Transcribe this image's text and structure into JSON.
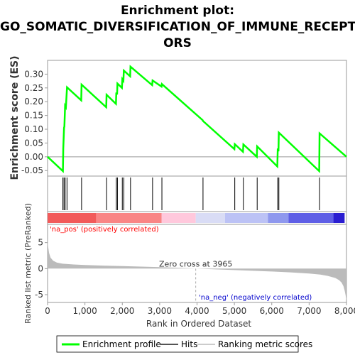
{
  "title_lines": [
    "Enrichment plot:",
    "GO_SOMATIC_DIVERSIFICATION_OF_IMMUNE_RECEPT",
    "ORS"
  ],
  "colors": {
    "es_line": "#00ff00",
    "hit_line": "#000000",
    "metric_fill": "#bbbbbb",
    "pos_label": "#ff0000",
    "neg_label": "#0000cc",
    "zero_line": "#aaaaaa",
    "frame": "#999999",
    "axis_text": "#333333"
  },
  "chart_data": [
    {
      "type": "line",
      "name": "enrichment-profile",
      "ylabel": "Enrichment score (ES)",
      "xlim": [
        0,
        8000
      ],
      "ylim": [
        -0.07,
        0.35
      ],
      "yticks": [
        -0.05,
        0.0,
        0.05,
        0.1,
        0.15,
        0.2,
        0.25,
        0.3
      ],
      "ytick_labels": [
        "-0.05",
        "0.00",
        "0.05",
        "0.10",
        "0.15",
        "0.20",
        "0.25",
        "0.30"
      ],
      "series": [
        {
          "name": "Enrichment profile",
          "x": [
            0,
            410,
            420,
            440,
            450,
            470,
            490,
            520,
            900,
            910,
            1570,
            1580,
            1830,
            1840,
            1860,
            1870,
            1990,
            2000,
            2030,
            2040,
            2210,
            2220,
            2800,
            2810,
            3050,
            3060,
            4150,
            4160,
            5000,
            5010,
            5230,
            5240,
            5600,
            5610,
            6150,
            6160,
            6180,
            6190,
            7270,
            7280,
            8000
          ],
          "y": [
            0.0,
            -0.052,
            0.03,
            0.105,
            0.11,
            0.185,
            0.18,
            0.252,
            0.205,
            0.262,
            0.18,
            0.225,
            0.192,
            0.233,
            0.226,
            0.266,
            0.25,
            0.282,
            0.276,
            0.313,
            0.292,
            0.327,
            0.26,
            0.277,
            0.255,
            0.264,
            0.133,
            0.13,
            0.028,
            0.046,
            0.018,
            0.045,
            0.0,
            0.038,
            -0.035,
            0.03,
            0.02,
            0.088,
            -0.052,
            0.085,
            0.0
          ]
        }
      ]
    },
    {
      "type": "scatter",
      "name": "hits",
      "series": [
        {
          "name": "Hits",
          "x": [
            410,
            440,
            470,
            520,
            910,
            1580,
            1840,
            1870,
            2000,
            2040,
            2220,
            2810,
            3060,
            4160,
            5010,
            5240,
            5610,
            6160,
            6190,
            7280
          ]
        }
      ]
    },
    {
      "type": "area",
      "name": "ranked-list-metric",
      "xlabel": "Rank in Ordered Dataset",
      "ylabel": "Ranked list metric (PreRanked)",
      "xlim": [
        0,
        8000
      ],
      "ylim": [
        -6.5,
        8.5
      ],
      "xticks": [
        0,
        1000,
        2000,
        3000,
        4000,
        5000,
        6000,
        7000,
        8000
      ],
      "xtick_labels": [
        "0",
        "1,000",
        "2,000",
        "3,000",
        "4,000",
        "5,000",
        "6,000",
        "7,000",
        "8,000"
      ],
      "yticks": [
        -5,
        0,
        5
      ],
      "ytick_labels": [
        "-5",
        "0",
        "5"
      ],
      "series": [
        {
          "name": "Ranking metric scores",
          "x": [
            0,
            10,
            40,
            80,
            150,
            250,
            400,
            700,
            1000,
            1500,
            2000,
            2500,
            3000,
            3500,
            3965,
            4500,
            5000,
            5500,
            6000,
            6500,
            7000,
            7300,
            7500,
            7700,
            7800,
            7870,
            7920,
            7950,
            7980,
            8000
          ],
          "y": [
            5.8,
            4.5,
            3.0,
            2.1,
            1.5,
            1.15,
            0.95,
            0.8,
            0.7,
            0.58,
            0.48,
            0.38,
            0.28,
            0.15,
            0.0,
            -0.15,
            -0.28,
            -0.42,
            -0.55,
            -0.72,
            -0.95,
            -1.15,
            -1.4,
            -1.8,
            -2.2,
            -2.7,
            -3.4,
            -4.2,
            -5.2,
            -6.2
          ]
        }
      ],
      "zero_cross_label": "Zero cross at 3965",
      "zero_cross_x": 3965,
      "pos_label": "'na_pos' (positively correlated)",
      "neg_label": "'na_neg' (negatively correlated)"
    }
  ],
  "heat_bar": [
    {
      "x0": 0,
      "x1": 1300,
      "color": "#f25a5a"
    },
    {
      "x0": 1300,
      "x1": 3050,
      "color": "#f98585"
    },
    {
      "x0": 3050,
      "x1": 3965,
      "color": "#ffc8dc"
    },
    {
      "x0": 3965,
      "x1": 4750,
      "color": "#d9dcf5"
    },
    {
      "x0": 4750,
      "x1": 5900,
      "color": "#bcc2f5"
    },
    {
      "x0": 5900,
      "x1": 6450,
      "color": "#8f98ee"
    },
    {
      "x0": 6450,
      "x1": 7650,
      "color": "#5f5fe6"
    },
    {
      "x0": 7650,
      "x1": 7950,
      "color": "#2b1ed1"
    }
  ],
  "legend": {
    "items": [
      {
        "label": "Enrichment profile",
        "color": "#00ff00"
      },
      {
        "label": "Hits",
        "color": "#555555"
      },
      {
        "label": "Ranking metric scores",
        "color": "#cccccc"
      }
    ]
  }
}
